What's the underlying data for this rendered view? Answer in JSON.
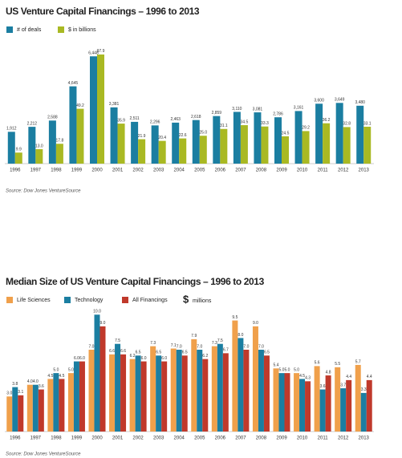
{
  "chart_data": [
    {
      "type": "bar",
      "title": "US Venture Capital Financings – 1996 to 2013",
      "categories": [
        "1996",
        "1997",
        "1998",
        "1999",
        "2000",
        "2001",
        "2002",
        "2003",
        "2004",
        "2005",
        "2006",
        "2007",
        "2008",
        "2009",
        "2010",
        "2011",
        "2012",
        "2013"
      ],
      "series": [
        {
          "name": "# of deals",
          "color": "#1b7ea1",
          "values": [
            1912,
            2212,
            2588,
            4645,
            6448,
            3381,
            2511,
            2296,
            2463,
            2618,
            2859,
            3110,
            3081,
            2786,
            3161,
            3600,
            3649,
            3480
          ],
          "value_labels": [
            "1,912",
            "2,212",
            "2,588",
            "4,645",
            "6,448",
            "3,381",
            "2,511",
            "2,296",
            "2,463",
            "2,618",
            "2,859",
            "3,110",
            "3,081",
            "2,786",
            "3,161",
            "3,600",
            "3,649",
            "3,480"
          ]
        },
        {
          "name": "$ in billions",
          "color": "#a9b923",
          "axis": "y2",
          "values": [
            9.9,
            13.0,
            17.8,
            49.2,
            97.9,
            35.9,
            21.9,
            20.4,
            22.6,
            25.0,
            31.1,
            34.5,
            33.3,
            24.5,
            29.2,
            36.2,
            32.8,
            33.1
          ],
          "value_labels": [
            "9.9",
            "13.0",
            "17.8",
            "49.2",
            "97.9",
            "35.9",
            "21.9",
            "20.4",
            "22.6",
            "25.0",
            "31.1",
            "34.5",
            "33.3",
            "24.5",
            "29.2",
            "36.2",
            "32.8",
            "33.1"
          ]
        }
      ],
      "ylim": [
        0,
        6700
      ],
      "y2lim": [
        0,
        100
      ],
      "source": "Source: Dow Jones VentureSource"
    },
    {
      "type": "bar",
      "title": "Median Size of US Venture Capital Financings – 1996 to 2013",
      "categories": [
        "1996",
        "1997",
        "1998",
        "1999",
        "2000",
        "2001",
        "2002",
        "2003",
        "2004",
        "2005",
        "2006",
        "2007",
        "2008",
        "2009",
        "2010",
        "2011",
        "2012",
        "2013"
      ],
      "series": [
        {
          "name": "Life Sciences",
          "color": "#f0a04b",
          "values": [
            3.0,
            4.0,
            4.5,
            5.0,
            7.0,
            6.6,
            6.2,
            7.3,
            7.1,
            7.9,
            7.3,
            9.5,
            9.0,
            5.4,
            5.0,
            5.6,
            5.5,
            5.7
          ],
          "value_labels": [
            "3.0",
            "4.0",
            "4.5",
            "5.0",
            "7.0",
            "6.6",
            "6.2",
            "7.3",
            "7.1",
            "7.9",
            "7.3",
            "9.5",
            "9.0",
            "5.4",
            "5.0",
            "5.6",
            "5.5",
            "5.7"
          ]
        },
        {
          "name": "Technology",
          "color": "#1b7ea1",
          "values": [
            3.8,
            4.0,
            5.0,
            6.0,
            10.0,
            7.5,
            6.5,
            6.5,
            7.0,
            7.0,
            7.5,
            8.0,
            7.0,
            5.0,
            4.5,
            3.6,
            3.7,
            3.3
          ],
          "value_labels": [
            "3.8",
            "4.0",
            "5.0",
            "6.0",
            "10.0",
            "7.5",
            "6.5",
            "6.5",
            "7.0",
            "7.0",
            "7.5",
            "8.0",
            "7.0",
            "5.0",
            "4.5",
            "3.6",
            "3.7",
            "3.3"
          ]
        },
        {
          "name": "All Financings",
          "color": "#c0392b",
          "values": [
            3.1,
            3.6,
            4.5,
            6.0,
            9.0,
            6.6,
            6.0,
            6.0,
            6.5,
            6.2,
            6.7,
            7.0,
            6.5,
            5.0,
            4.3,
            4.8,
            4.4,
            4.4
          ],
          "value_labels": [
            "3.1",
            "3.6",
            "4.5",
            "6.0",
            "9.0",
            "6.6",
            "6.0",
            "6.0",
            "6.5",
            "6.2",
            "6.7",
            "7.0",
            "6.5",
            "5.0",
            "4.3",
            "4.8",
            "4.4",
            "4.4"
          ]
        }
      ],
      "units": {
        "symbol": "$",
        "text": "millions"
      },
      "ylim": [
        0,
        10.5
      ],
      "source": "Source: Dow Jones VentureSource"
    }
  ]
}
